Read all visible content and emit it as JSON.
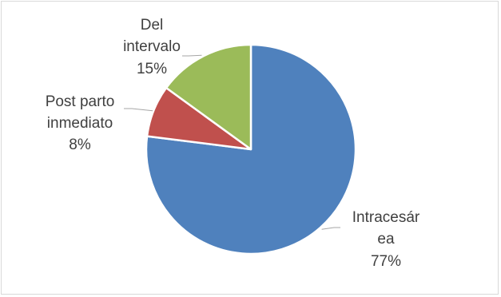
{
  "chart_data": {
    "type": "pie",
    "slices": [
      {
        "label_lines": [
          "Intracesár",
          "ea"
        ],
        "percent_label": "77%",
        "value": 77,
        "color": "#4f81bd"
      },
      {
        "label_lines": [
          "Post parto",
          "inmediato"
        ],
        "percent_label": "8%",
        "value": 8,
        "color": "#c0504d"
      },
      {
        "label_lines": [
          "Del",
          "intervalo"
        ],
        "percent_label": "15%",
        "value": 15,
        "color": "#9bbb59"
      }
    ],
    "start_angle_deg": 0,
    "direction": "clockwise",
    "slice_border_color": "#ffffff",
    "leader_line_color": "#a6a6a6",
    "title": "",
    "legend": "none"
  }
}
